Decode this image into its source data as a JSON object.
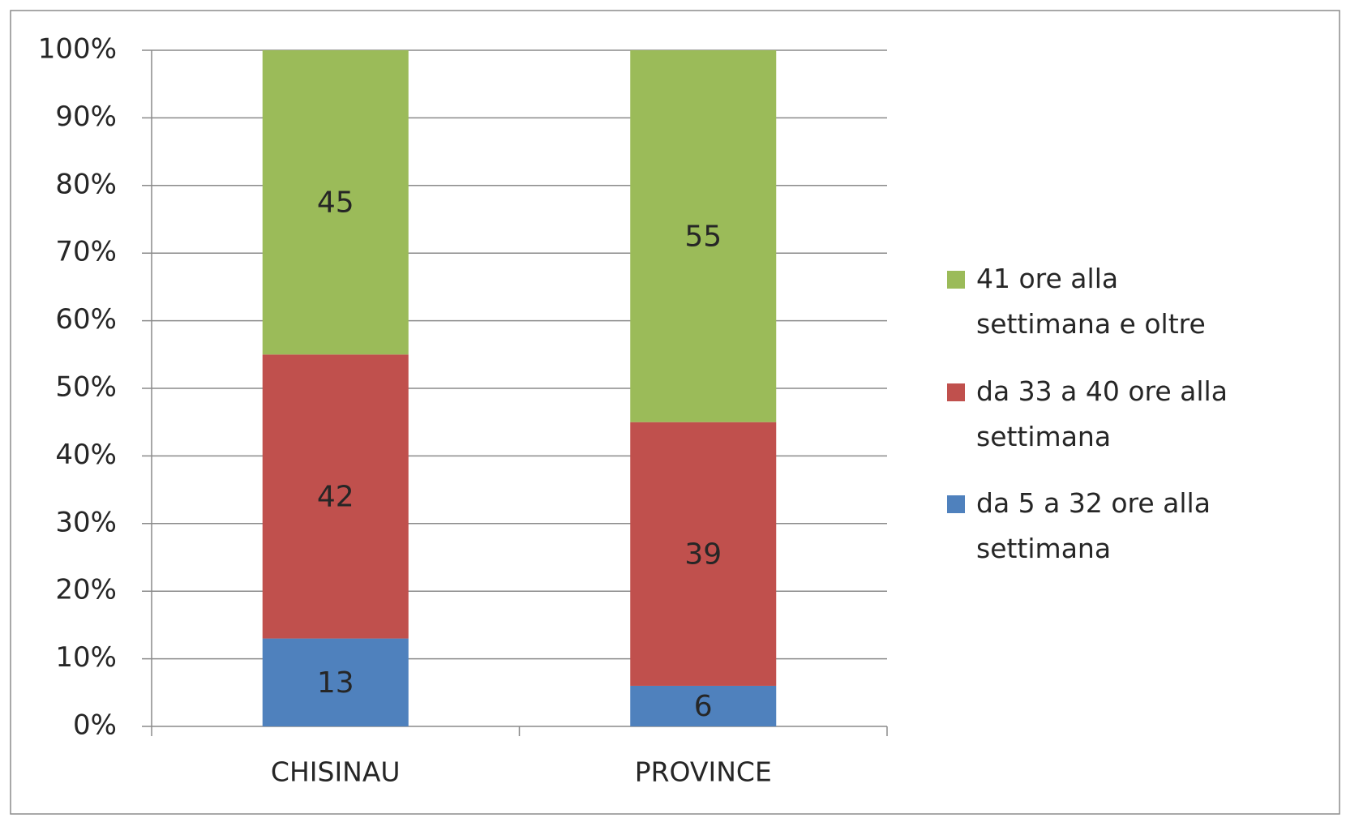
{
  "chart_data": {
    "type": "stacked_bar",
    "categories": [
      "CHISINAU",
      "PROVINCE"
    ],
    "series": [
      {
        "name": "da 5 a 32 ore alla settimana",
        "color": "#4f81bd",
        "values": [
          13,
          6
        ]
      },
      {
        "name": "da 33 a 40 ore alla settimana",
        "color": "#c0504d",
        "values": [
          42,
          39
        ]
      },
      {
        "name": "41 ore alla settimana e oltre",
        "color": "#9bbb59",
        "values": [
          45,
          55
        ]
      }
    ],
    "ylim": [
      0,
      100
    ],
    "yticks": [
      {
        "value": 0,
        "label": "0%"
      },
      {
        "value": 10,
        "label": "10%"
      },
      {
        "value": 20,
        "label": "20%"
      },
      {
        "value": 30,
        "label": "30%"
      },
      {
        "value": 40,
        "label": "40%"
      },
      {
        "value": 50,
        "label": "50%"
      },
      {
        "value": 60,
        "label": "60%"
      },
      {
        "value": 70,
        "label": "70%"
      },
      {
        "value": 80,
        "label": "80%"
      },
      {
        "value": 90,
        "label": "90%"
      },
      {
        "value": 100,
        "label": "100%"
      }
    ],
    "grid": true,
    "legend": "right"
  }
}
